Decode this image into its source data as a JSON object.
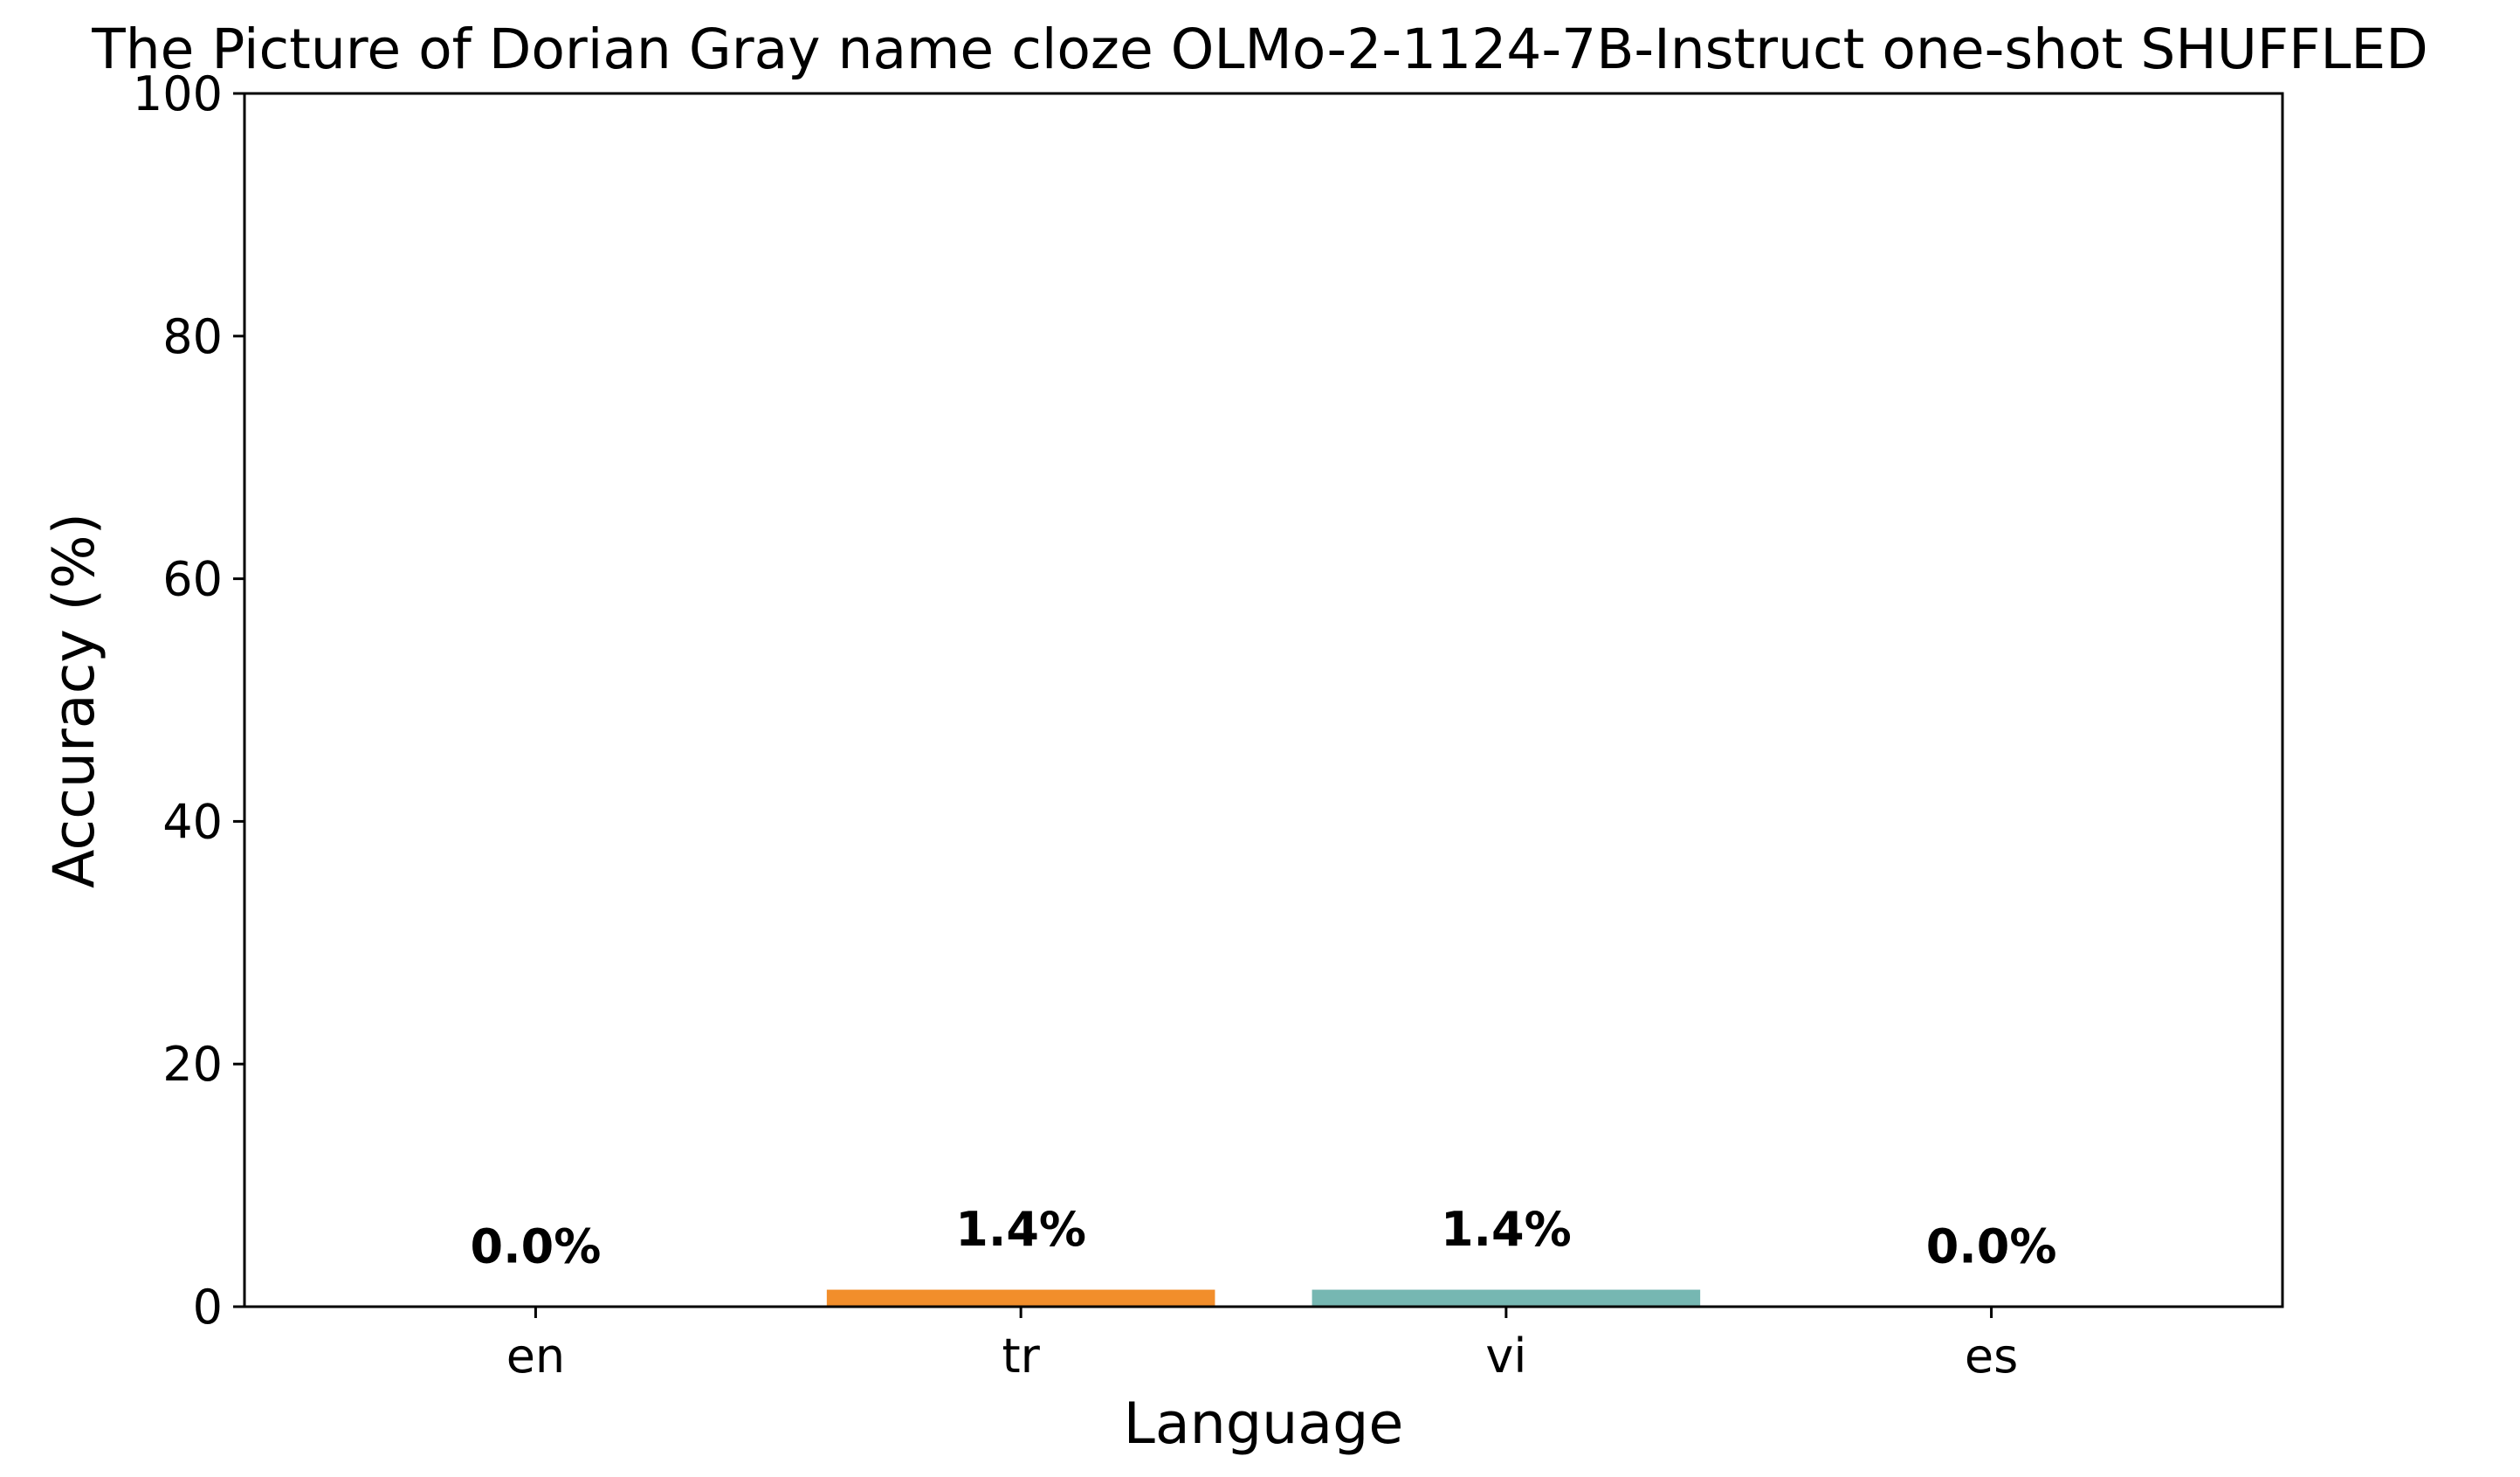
{
  "chart_data": {
    "type": "bar",
    "title": "The Picture of Dorian Gray name cloze OLMo-2-1124-7B-Instruct one-shot SHUFFLED",
    "xlabel": "Language",
    "ylabel": "Accuracy (%)",
    "categories": [
      "en",
      "tr",
      "vi",
      "es"
    ],
    "values": [
      0.0,
      1.4,
      1.4,
      0.0
    ],
    "data_labels": [
      "0.0%",
      "1.4%",
      "1.4%",
      "0.0%"
    ],
    "colors": [
      "#1f77b4",
      "#f28e2b",
      "#76b7b2",
      "#e15759"
    ],
    "ylim": [
      0,
      100
    ],
    "yticks": [
      0,
      20,
      40,
      60,
      80,
      100
    ],
    "grid": false,
    "legend": "none"
  }
}
